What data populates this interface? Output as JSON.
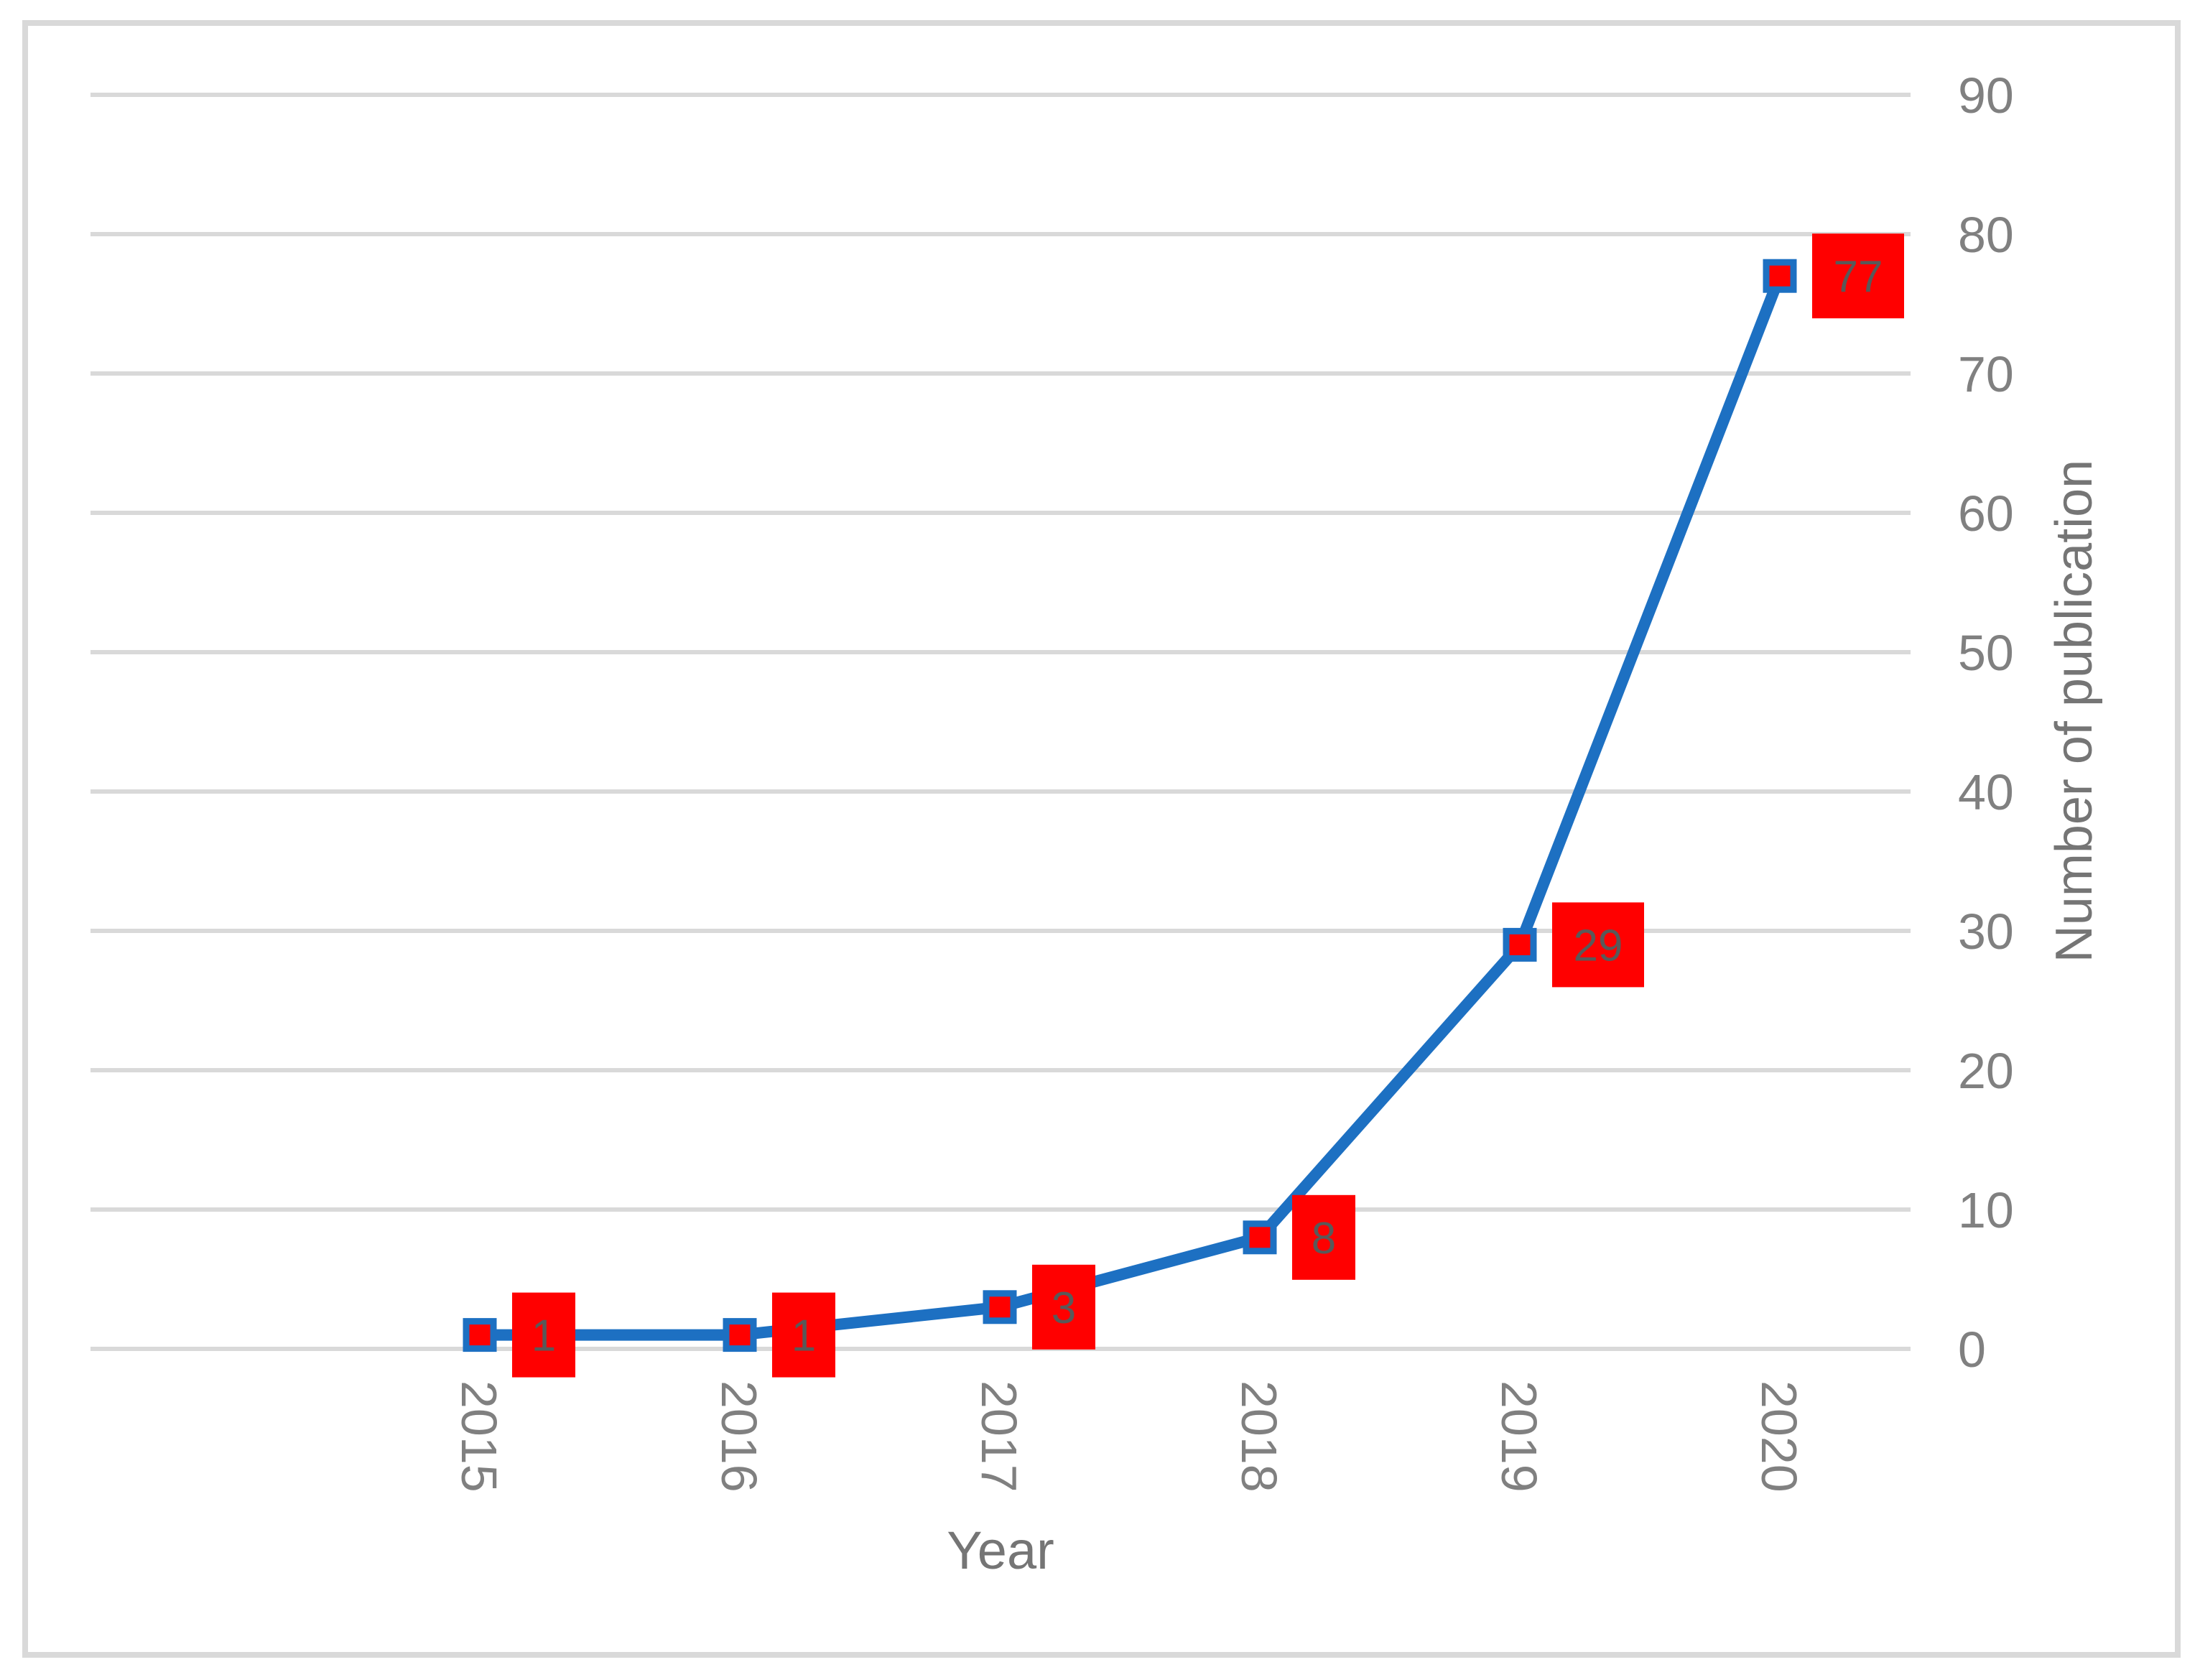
{
  "chart_data": {
    "type": "line",
    "title": "",
    "categories": [
      "2015",
      "2016",
      "2017",
      "2018",
      "2019",
      "2020"
    ],
    "values": [
      1,
      1,
      3,
      8,
      29,
      77
    ],
    "data_labels": [
      "1",
      "1",
      "3",
      "8",
      "29",
      "77"
    ],
    "xlabel": "Year",
    "ylabel": "Number of publication",
    "ylim": [
      0,
      90
    ],
    "yticks": [
      0,
      10,
      20,
      30,
      40,
      50,
      60,
      70,
      80,
      90
    ],
    "grid": "horizontal",
    "legend_position": "none",
    "y_axis_side": "right",
    "x_tick_rotation_deg": 90,
    "styles": {
      "line_color": "#1D70C2",
      "marker_fill": "#FF0000",
      "marker_border": "#1D70C2",
      "label_box_fill": "#FF0000",
      "label_text_color": "#595959",
      "gridline_color": "#D9D9D9",
      "frame_border_color": "#D9D9D9",
      "tick_label_color": "#808080",
      "axis_title_color": "#757575",
      "background": "#FFFFFF"
    }
  }
}
